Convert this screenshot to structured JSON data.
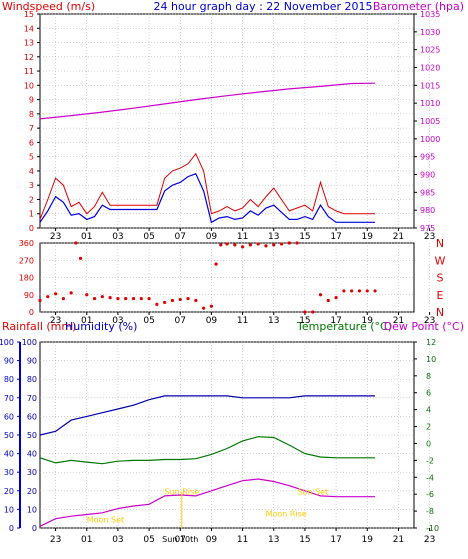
{
  "top_header": {
    "windspeed_label": "Windspeed (m/s)",
    "title": "24 hour graph day : 22 November 2015",
    "barometer_label": "Barometer (hpa)"
  },
  "bottom_header": {
    "rainfall_label": "Rainfall (mm)",
    "humidity_label": "Humidity (%)",
    "temperature_label": "Temperature (°C)",
    "dewpoint_label": "Dew Point (°C)"
  },
  "x_axis_ticks": [
    "23",
    "01",
    "03",
    "05",
    "07",
    "09",
    "11",
    "13",
    "15",
    "17",
    "19",
    "21",
    "23"
  ],
  "x_axis_bottom_ticks": [
    "23",
    "01",
    "03",
    "05",
    "07",
    "09",
    "11",
    "13",
    "15",
    "17",
    "19",
    "21",
    "23"
  ],
  "colors": {
    "wind_gust": "#e00000",
    "wind_avg": "#0000e0",
    "barometer": "#cc00cc",
    "direction": "#e00000",
    "humidity": "#0000aa",
    "temperature": "#007700",
    "dewpoint": "#cc00cc",
    "sun": "#ffcc00",
    "moon": "#ffcc00",
    "rain_axis": "#0000cc",
    "grid": "#aaaaaa"
  },
  "chart_data": [
    {
      "type": "line",
      "title": "24 hour graph day : 22 November 2015",
      "ylabel": "Windspeed (m/s)",
      "ylim": [
        0,
        15
      ],
      "y_ticks": [
        "0",
        "1",
        "2",
        "3",
        "4",
        "5",
        "6",
        "7",
        "8",
        "9",
        "10",
        "11",
        "12",
        "13",
        "14",
        "15"
      ],
      "x": [
        22,
        22.5,
        23,
        23.5,
        24,
        24.5,
        25,
        25.5,
        26,
        26.5,
        27,
        27.5,
        28,
        28.5,
        29,
        29.5,
        30,
        30.5,
        31,
        31.5,
        32,
        32.5,
        33,
        33.5,
        34,
        34.5,
        35,
        35.5,
        36,
        36.5,
        37,
        37.5,
        38,
        38.5,
        39,
        39.5,
        40,
        40.5,
        41,
        41.5,
        42,
        42.5,
        43,
        43.5
      ],
      "series": [
        {
          "values": [
            0.6,
            2.0,
            3.5,
            3.0,
            1.5,
            1.8,
            1.0,
            1.5,
            2.5,
            1.6,
            1.6,
            1.6,
            1.6,
            1.6,
            1.6,
            1.6,
            3.5,
            4.0,
            4.2,
            4.5,
            5.2,
            4.0,
            1.0,
            1.2,
            1.5,
            1.2,
            1.4,
            2.0,
            1.5,
            2.2,
            2.8,
            2.0,
            1.2,
            1.4,
            1.6,
            1.2,
            3.2,
            1.5,
            1.2,
            1.0,
            1.0,
            1.0,
            1.0,
            1.0
          ]
        },
        {
          "values": [
            0.4,
            1.2,
            2.2,
            1.8,
            0.9,
            1.0,
            0.6,
            0.8,
            1.6,
            1.3,
            1.3,
            1.3,
            1.3,
            1.3,
            1.3,
            1.3,
            2.6,
            3.0,
            3.2,
            3.6,
            3.8,
            2.6,
            0.4,
            0.7,
            0.8,
            0.6,
            0.7,
            1.2,
            0.9,
            1.4,
            1.6,
            1.1,
            0.6,
            0.6,
            0.8,
            0.6,
            1.6,
            0.8,
            0.4,
            0.4,
            0.4,
            0.4,
            0.4,
            0.4
          ]
        }
      ],
      "y2label": "Barometer (hpa)",
      "y2lim": [
        975,
        1035
      ],
      "y2_ticks": [
        "975",
        "980",
        "985",
        "990",
        "995",
        "1000",
        "1005",
        "1010",
        "1015",
        "1020",
        "1025",
        "1030",
        "1035"
      ],
      "barometer": {
        "x": [
          22,
          24,
          26,
          28,
          30,
          32,
          34,
          36,
          38,
          40,
          42,
          43.5
        ],
        "values": [
          1005.6,
          1006.5,
          1007.5,
          1008.6,
          1009.8,
          1011.0,
          1012.1,
          1013.1,
          1014.0,
          1014.7,
          1015.5,
          1015.6
        ]
      }
    },
    {
      "type": "scatter",
      "ylabel_right": [
        "N",
        "W",
        "S",
        "E",
        "N"
      ],
      "ylim": [
        0,
        360
      ],
      "y_ticks": [
        "0",
        "90",
        "180",
        "270",
        "360"
      ],
      "x": [
        22,
        22.5,
        23,
        23.5,
        24,
        24.3,
        24.6,
        25,
        25.5,
        26,
        26.5,
        27,
        27.5,
        28,
        28.5,
        29,
        29.5,
        30,
        30.5,
        31,
        31.5,
        32,
        32.5,
        33,
        33.3,
        33.6,
        34,
        34.5,
        35,
        35.5,
        36,
        36.5,
        37,
        37.5,
        38,
        38.5,
        39,
        39.5,
        40,
        40.5,
        41,
        41.5,
        42,
        42.5,
        43,
        43.5
      ],
      "values": [
        60,
        80,
        95,
        70,
        100,
        360,
        280,
        90,
        70,
        80,
        75,
        70,
        70,
        70,
        70,
        70,
        40,
        50,
        60,
        65,
        70,
        60,
        20,
        30,
        250,
        350,
        355,
        350,
        340,
        350,
        355,
        345,
        350,
        355,
        360,
        360,
        0,
        0,
        90,
        60,
        75,
        110,
        110,
        110,
        110,
        110
      ]
    },
    {
      "type": "line",
      "ylabel": "Humidity (%)",
      "ylim": [
        0,
        100
      ],
      "y_ticks": [
        "0",
        "10",
        "20",
        "30",
        "40",
        "50",
        "60",
        "70",
        "80",
        "90",
        "100"
      ],
      "y2label": "Temperature (°C)",
      "y2lim": [
        -10,
        12
      ],
      "y2_ticks": [
        "-10",
        "-8",
        "-6",
        "-4",
        "-2",
        "0",
        "2",
        "4",
        "6",
        "8",
        "10",
        "12"
      ],
      "x": [
        22,
        23,
        24,
        25,
        26,
        27,
        28,
        29,
        30,
        31,
        32,
        33,
        34,
        35,
        36,
        37,
        38,
        39,
        40,
        41,
        42,
        43,
        43.5
      ],
      "series": [
        {
          "name": "Humidity (%)",
          "values": [
            50,
            52,
            58,
            60,
            62,
            64,
            66,
            69,
            71,
            71,
            71,
            71,
            71,
            70,
            70,
            70,
            70,
            71,
            71,
            71,
            71,
            71,
            71
          ]
        },
        {
          "name": "Temperature (°C)",
          "values": [
            -1.7,
            -2.3,
            -2.0,
            -2.2,
            -2.4,
            -2.1,
            -2.0,
            -2.0,
            -1.9,
            -1.9,
            -1.8,
            -1.3,
            -0.6,
            0.3,
            0.8,
            0.7,
            -0.2,
            -1.2,
            -1.6,
            -1.7,
            -1.7,
            -1.7,
            -1.7
          ]
        },
        {
          "name": "Dew Point (°C)",
          "values": [
            -9.8,
            -8.9,
            -8.6,
            -8.4,
            -8.2,
            -7.7,
            -7.4,
            -7.2,
            -6.2,
            -6.1,
            -6.2,
            -5.6,
            -5.0,
            -4.4,
            -4.2,
            -4.5,
            -5.0,
            -5.6,
            -6.2,
            -6.3,
            -6.3,
            -6.3,
            -6.3
          ]
        }
      ],
      "annotations": [
        {
          "label": "Moon Set",
          "x": 26.2,
          "y": 2
        },
        {
          "label": "Sun Rise",
          "x": 31.1,
          "y": 17
        },
        {
          "label": "Sun Set",
          "x": 39.5,
          "y": 17
        },
        {
          "label": "Moon Rise",
          "x": 37.8,
          "y": 5
        },
        {
          "label": "Sun 10th",
          "x": 31.0,
          "y": -1
        }
      ]
    }
  ]
}
